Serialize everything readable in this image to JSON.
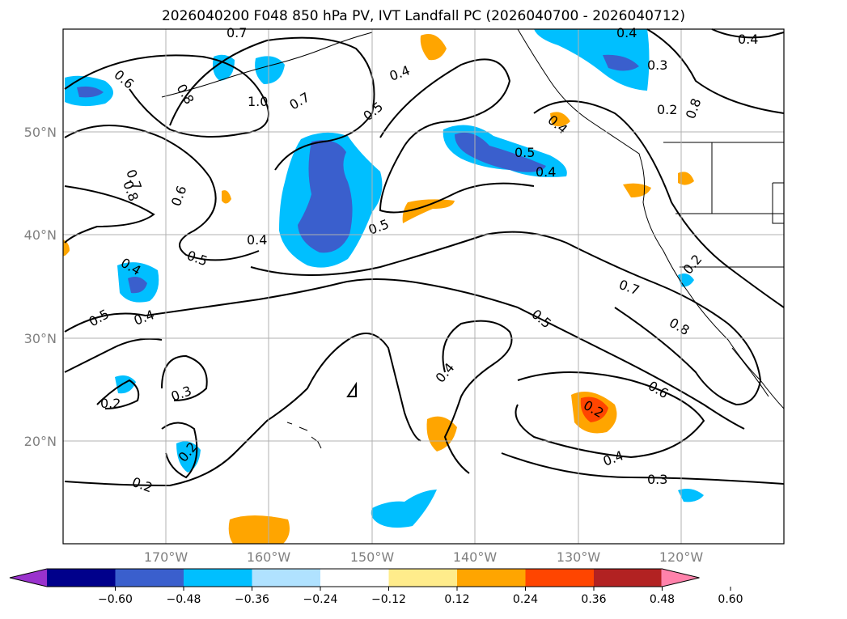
{
  "title": "2026040200 F048 850 hPa PV, IVT Landfall PC (2026040700 - 2026040712)",
  "lat_labels": [
    "50°N",
    "40°N",
    "30°N",
    "20°N"
  ],
  "lon_labels": [
    "170°W",
    "160°W",
    "150°W",
    "140°W",
    "130°W",
    "120°W"
  ],
  "colorbar": {
    "ticks": [
      "−0.60",
      "−0.48",
      "−0.36",
      "−0.24",
      "−0.12",
      "0.12",
      "0.24",
      "0.36",
      "0.48",
      "0.60"
    ],
    "colors": [
      "#9a32cd",
      "#00008b",
      "#3a5fcd",
      "#00bfff",
      "#b0e2ff",
      "#ffffff",
      "#ffec8b",
      "#ffa500",
      "#ff4500",
      "#b22222",
      "#ff82ab"
    ]
  },
  "contour_labels": [
    "0.7",
    "0.4",
    "0.4",
    "0.6",
    "0.8",
    "1.0",
    "0.7",
    "0.4",
    "0.3",
    "0.2",
    "0.8",
    "0.5",
    "0.4",
    "0.5",
    "0.4",
    "0.7",
    "0.8",
    "0.6",
    "0.5",
    "0.4",
    "0.5",
    "0.2",
    "0.7",
    "0.8",
    "0.5",
    "0.4",
    "0.5",
    "0.4",
    "0.6",
    "0.2",
    "0.4",
    "0.3",
    "0.2",
    "0.2",
    "0.4",
    "0.3",
    "0.2"
  ]
}
